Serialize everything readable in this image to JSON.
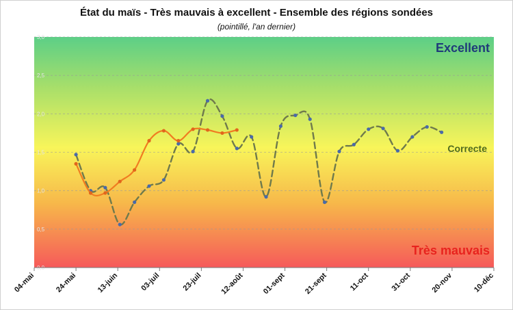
{
  "chart_data": {
    "type": "line",
    "title": "État du maïs - Très mauvais à excellent - Ensemble des régions sondées",
    "subtitle": "(pointillé, l'an dernier)",
    "x_tick_labels": [
      "04-mai",
      "24-mai",
      "13-juin",
      "03-juil",
      "23-juil",
      "12-août",
      "01-sept",
      "21-sept",
      "11-oct",
      "31-oct",
      "20-nov",
      "10-déc"
    ],
    "y_tick_labels": [
      "0,0",
      "0,5",
      "1,0",
      "1,5",
      "2,0",
      "2,5",
      "3,0"
    ],
    "xlim": [
      "04-mai",
      "10-déc"
    ],
    "ylim": [
      0,
      3
    ],
    "grid": true,
    "band_labels": [
      {
        "text": "Excellent",
        "color": "#1f3b7a"
      },
      {
        "text": "Correcte",
        "color": "#4f6b1e"
      },
      {
        "text": "Très mauvais",
        "color": "#e8231e"
      }
    ],
    "series": [
      {
        "style": "solid",
        "color": "#f07c21",
        "marker_color": "#e2661c",
        "x": [
          "24-mai",
          "31-mai",
          "07-juin",
          "14-juin",
          "21-juin",
          "28-juin",
          "05-juil",
          "12-juil",
          "19-juil",
          "26-juil",
          "02-août",
          "09-août"
        ],
        "y": [
          1.35,
          0.97,
          0.97,
          1.12,
          1.27,
          1.65,
          1.78,
          1.65,
          1.8,
          1.79,
          1.75,
          1.79
        ]
      },
      {
        "style": "dashed",
        "color": "#6f7a4c",
        "marker_color": "#4a6aa8",
        "x": [
          "24-mai",
          "31-mai",
          "07-juin",
          "14-juin",
          "21-juin",
          "28-juin",
          "05-juil",
          "12-juil",
          "19-juil",
          "26-juil",
          "02-août",
          "09-août",
          "16-août",
          "23-août",
          "30-août",
          "06-sept",
          "13-sept",
          "20-sept",
          "27-sept",
          "04-oct",
          "11-oct",
          "18-oct",
          "25-oct",
          "01-nov",
          "08-nov",
          "15-nov"
        ],
        "y": [
          1.47,
          1.0,
          1.04,
          0.56,
          0.85,
          1.06,
          1.14,
          1.61,
          1.51,
          2.17,
          1.97,
          1.55,
          1.7,
          0.92,
          1.84,
          1.98,
          1.93,
          0.85,
          1.51,
          1.6,
          1.8,
          1.81,
          1.52,
          1.7,
          1.83,
          1.76
        ]
      }
    ]
  }
}
